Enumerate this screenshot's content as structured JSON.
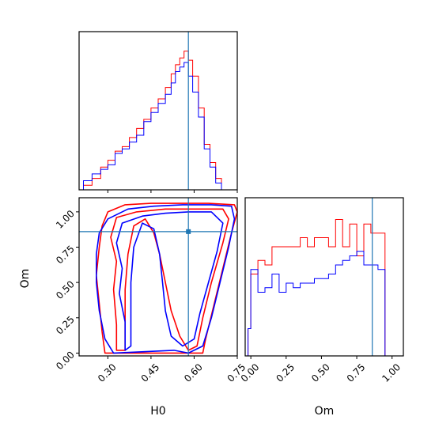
{
  "chart_data": [
    {
      "type": "histogram",
      "panel": "H0 marginal",
      "xlim": [
        0.2,
        0.75
      ],
      "truth": 0.58,
      "bins": [
        0.21,
        0.22,
        0.23,
        0.24,
        0.25,
        0.26,
        0.27,
        0.28,
        0.29,
        0.3,
        0.31,
        0.32,
        0.33,
        0.34,
        0.35,
        0.36,
        0.37,
        0.38,
        0.39,
        0.4,
        0.41,
        0.42,
        0.43,
        0.44,
        0.45,
        0.46,
        0.47,
        0.48,
        0.49,
        0.5,
        0.51,
        0.52,
        0.53,
        0.54,
        0.55,
        0.56,
        0.57,
        0.58,
        0.59,
        0.6,
        0.61,
        0.62,
        0.63,
        0.64,
        0.65,
        0.66,
        0.67,
        0.68,
        0.69,
        0.7,
        0.71,
        0.72,
        0.73,
        0.74,
        0.75
      ],
      "series": [
        {
          "color": "#ff0000",
          "edges": [
            0.215,
            0.245,
            0.275,
            0.3,
            0.325,
            0.35,
            0.375,
            0.4,
            0.425,
            0.45,
            0.475,
            0.5,
            0.52,
            0.535,
            0.55,
            0.565,
            0.58,
            0.595,
            0.615,
            0.635,
            0.655,
            0.675,
            0.695,
            0.715
          ],
          "values": [
            2,
            5,
            10,
            13,
            17,
            19,
            23,
            27,
            31,
            36,
            40,
            45,
            51,
            55,
            58,
            61,
            57,
            50,
            36,
            20,
            12,
            5,
            0
          ]
        },
        {
          "color": "#0000ff",
          "edges": [
            0.215,
            0.245,
            0.275,
            0.3,
            0.325,
            0.35,
            0.375,
            0.4,
            0.425,
            0.45,
            0.475,
            0.5,
            0.52,
            0.535,
            0.55,
            0.565,
            0.58,
            0.595,
            0.615,
            0.635,
            0.655,
            0.675,
            0.695,
            0.715
          ],
          "values": [
            4,
            7,
            9,
            11,
            16,
            18,
            21,
            24,
            30,
            34,
            38,
            42,
            47,
            52,
            54,
            56,
            50,
            43,
            32,
            18,
            10,
            3,
            0
          ]
        }
      ],
      "xticks": [
        "0.30",
        "0.45",
        "0.60",
        "0.75"
      ]
    },
    {
      "type": "contour",
      "panel": "H0 vs Om",
      "xlabel": "H0",
      "ylabel": "Om",
      "xlim": [
        0.2,
        0.75
      ],
      "ylim": [
        -0.02,
        1.1
      ],
      "truth": {
        "H0": 0.58,
        "Om": 0.86
      },
      "xticks": [
        "0.30",
        "0.45",
        "0.60",
        "0.75"
      ],
      "yticks": [
        "0.00",
        "0.25",
        "0.50",
        "0.75",
        "1.00"
      ],
      "series": [
        {
          "color": "#ff0000",
          "contours": [
            [
              [
                0.29,
                0.0
              ],
              [
                0.28,
                0.15
              ],
              [
                0.27,
                0.35
              ],
              [
                0.26,
                0.55
              ],
              [
                0.27,
                0.75
              ],
              [
                0.28,
                0.9
              ],
              [
                0.3,
                1.0
              ],
              [
                0.36,
                1.05
              ],
              [
                0.45,
                1.06
              ],
              [
                0.55,
                1.06
              ],
              [
                0.65,
                1.06
              ],
              [
                0.74,
                1.05
              ],
              [
                0.75,
                1.0
              ],
              [
                0.73,
                0.85
              ],
              [
                0.7,
                0.6
              ],
              [
                0.67,
                0.35
              ],
              [
                0.64,
                0.1
              ],
              [
                0.63,
                0.0
              ]
            ],
            [
              [
                0.33,
                0.02
              ],
              [
                0.33,
                0.2
              ],
              [
                0.32,
                0.45
              ],
              [
                0.33,
                0.65
              ],
              [
                0.31,
                0.82
              ],
              [
                0.33,
                0.96
              ],
              [
                0.4,
                1.0
              ],
              [
                0.5,
                1.02
              ],
              [
                0.6,
                1.02
              ],
              [
                0.7,
                1.02
              ],
              [
                0.72,
                0.95
              ],
              [
                0.7,
                0.78
              ],
              [
                0.66,
                0.5
              ],
              [
                0.63,
                0.25
              ],
              [
                0.61,
                0.05
              ],
              [
                0.58,
                0.02
              ],
              [
                0.55,
                0.12
              ],
              [
                0.52,
                0.3
              ],
              [
                0.5,
                0.5
              ],
              [
                0.48,
                0.7
              ],
              [
                0.46,
                0.85
              ],
              [
                0.43,
                0.95
              ],
              [
                0.39,
                0.9
              ],
              [
                0.37,
                0.7
              ],
              [
                0.36,
                0.45
              ],
              [
                0.36,
                0.2
              ],
              [
                0.36,
                0.02
              ]
            ]
          ]
        },
        {
          "color": "#0000ff",
          "contours": [
            [
              [
                0.32,
                0.0
              ],
              [
                0.29,
                0.1
              ],
              [
                0.27,
                0.3
              ],
              [
                0.26,
                0.5
              ],
              [
                0.26,
                0.7
              ],
              [
                0.27,
                0.85
              ],
              [
                0.3,
                0.95
              ],
              [
                0.37,
                1.02
              ],
              [
                0.46,
                1.04
              ],
              [
                0.56,
                1.05
              ],
              [
                0.66,
                1.05
              ],
              [
                0.73,
                1.04
              ],
              [
                0.74,
                0.95
              ],
              [
                0.72,
                0.75
              ],
              [
                0.69,
                0.5
              ],
              [
                0.66,
                0.25
              ],
              [
                0.63,
                0.05
              ],
              [
                0.58,
                0.0
              ],
              [
                0.53,
                0.02
              ]
            ],
            [
              [
                0.36,
                0.02
              ],
              [
                0.36,
                0.22
              ],
              [
                0.34,
                0.42
              ],
              [
                0.35,
                0.6
              ],
              [
                0.33,
                0.78
              ],
              [
                0.35,
                0.92
              ],
              [
                0.42,
                0.97
              ],
              [
                0.5,
                0.99
              ],
              [
                0.58,
                1.0
              ],
              [
                0.66,
                1.0
              ],
              [
                0.7,
                0.92
              ],
              [
                0.68,
                0.72
              ],
              [
                0.65,
                0.5
              ],
              [
                0.62,
                0.28
              ],
              [
                0.6,
                0.1
              ],
              [
                0.56,
                0.05
              ],
              [
                0.52,
                0.12
              ],
              [
                0.5,
                0.3
              ],
              [
                0.49,
                0.5
              ],
              [
                0.48,
                0.7
              ],
              [
                0.46,
                0.88
              ],
              [
                0.42,
                0.92
              ],
              [
                0.39,
                0.75
              ],
              [
                0.38,
                0.5
              ],
              [
                0.38,
                0.25
              ],
              [
                0.38,
                0.05
              ]
            ]
          ]
        }
      ]
    },
    {
      "type": "histogram",
      "panel": "Om marginal",
      "xlabel": "Om",
      "xlim": [
        -0.04,
        1.08
      ],
      "truth": 0.86,
      "xticks": [
        "0.00",
        "0.25",
        "0.50",
        "0.75",
        "1.00"
      ],
      "series": [
        {
          "color": "#ff0000",
          "edges": [
            -0.02,
            0.0,
            0.05,
            0.1,
            0.15,
            0.2,
            0.25,
            0.3,
            0.35,
            0.4,
            0.45,
            0.5,
            0.55,
            0.6,
            0.65,
            0.7,
            0.75,
            0.8,
            0.85,
            0.9,
            0.95,
            1.0,
            1.08
          ],
          "values": [
            6,
            18,
            21,
            20,
            24,
            24,
            24,
            24,
            26,
            24,
            26,
            26,
            24,
            30,
            24,
            29,
            22,
            29,
            27,
            27,
            0,
            0
          ]
        },
        {
          "color": "#0000ff",
          "edges": [
            -0.02,
            0.0,
            0.05,
            0.1,
            0.15,
            0.2,
            0.25,
            0.3,
            0.35,
            0.4,
            0.45,
            0.5,
            0.55,
            0.6,
            0.65,
            0.7,
            0.75,
            0.8,
            0.85,
            0.9,
            0.95,
            1.0,
            1.08
          ],
          "values": [
            6,
            19,
            14,
            15,
            18,
            14,
            16,
            15,
            16,
            16,
            17,
            17,
            18,
            20,
            21,
            22,
            23,
            20,
            20,
            19,
            0,
            0
          ]
        }
      ]
    }
  ]
}
